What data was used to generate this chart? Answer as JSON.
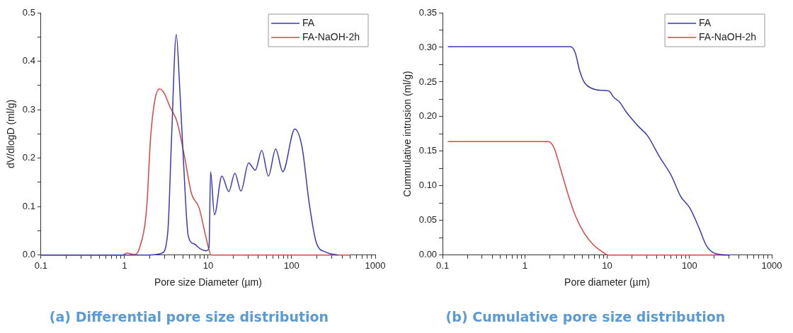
{
  "chart_data": [
    {
      "type": "line",
      "title": "(a) Differential pore size distribution",
      "xlabel": "Pore size Diameter (µm)",
      "ylabel": "dV/dlogD (ml/g)",
      "log": "x",
      "xlim": [
        0.1,
        1000
      ],
      "ylim": [
        0,
        0.5
      ],
      "xticks": [
        0.1,
        {
          "value": 0.2,
          "label": null
        },
        {
          "value": 0.3,
          "label": null
        },
        {
          "value": 0.4,
          "label": null
        },
        {
          "value": 0.5,
          "label": null
        },
        {
          "value": 0.6,
          "label": null
        },
        {
          "value": 0.7,
          "label": null
        },
        {
          "value": 0.8,
          "label": null
        },
        {
          "value": 0.9,
          "label": null
        },
        1,
        {
          "value": 2,
          "label": null
        },
        {
          "value": 3,
          "label": null
        },
        {
          "value": 4,
          "label": null
        },
        {
          "value": 5,
          "label": null
        },
        {
          "value": 6,
          "label": null
        },
        {
          "value": 7,
          "label": null
        },
        {
          "value": 8,
          "label": null
        },
        {
          "value": 9,
          "label": null
        },
        10,
        {
          "value": 20,
          "label": null
        },
        {
          "value": 30,
          "label": null
        },
        {
          "value": 40,
          "label": null
        },
        {
          "value": 50,
          "label": null
        },
        {
          "value": 60,
          "label": null
        },
        {
          "value": 70,
          "label": null
        },
        {
          "value": 80,
          "label": null
        },
        {
          "value": 90,
          "label": null
        },
        100,
        {
          "value": 200,
          "label": null
        },
        {
          "value": 300,
          "label": null
        },
        {
          "value": 400,
          "label": null
        },
        {
          "value": 500,
          "label": null
        },
        {
          "value": 600,
          "label": null
        },
        {
          "value": 700,
          "label": null
        },
        {
          "value": 800,
          "label": null
        },
        {
          "value": 900,
          "label": null
        },
        1000
      ],
      "yticks": [
        {
          "value": 0,
          "label": "0.0"
        },
        {
          "value": 0.05,
          "label": null
        },
        {
          "value": 0.1,
          "label": "0.1"
        },
        {
          "value": 0.15,
          "label": null
        },
        {
          "value": 0.2,
          "label": "0.2"
        },
        {
          "value": 0.25,
          "label": null
        },
        {
          "value": 0.3,
          "label": "0.3"
        },
        {
          "value": 0.35,
          "label": null
        },
        {
          "value": 0.4,
          "label": "0.4"
        },
        {
          "value": 0.45,
          "label": null
        },
        {
          "value": 0.5,
          "label": "0.5"
        }
      ],
      "grid": false,
      "legend": "top right",
      "marker": "none",
      "line_style": "solid",
      "series": [
        {
          "name": "FA",
          "color": "#3a3ab4",
          "x": [
            0.1,
            1.95,
            2.8,
            3.3,
            3.65,
            4.16,
            4.59,
            5.07,
            5.78,
            6.82,
            8.04,
            9.48,
            10.26,
            10.7,
            11.9,
            14.6,
            17.7,
            20.9,
            24.7,
            30.5,
            36.7,
            43.8,
            52.7,
            64.3,
            78.3,
            109,
            133,
            162,
            197,
            257,
            357
          ],
          "values": [
            0,
            0,
            0.004,
            0.05,
            0.24,
            0.455,
            0.34,
            0.194,
            0.04,
            0.023,
            0.013,
            0.009,
            0.016,
            0.172,
            0.083,
            0.163,
            0.131,
            0.169,
            0.132,
            0.19,
            0.175,
            0.216,
            0.163,
            0.219,
            0.172,
            0.26,
            0.223,
            0.107,
            0.026,
            0.006,
            0
          ]
        },
        {
          "name": "FA-NaOH-2h",
          "color": "#d94545",
          "x": [
            0.1,
            0.94,
            1.08,
            1.3,
            1.52,
            1.84,
            2.05,
            2.33,
            2.64,
            2.98,
            3.51,
            4.23,
            5.21,
            6.32,
            7.78,
            9.48,
            10.9,
            500
          ],
          "values": [
            0,
            0,
            0.004,
            0.001,
            0.016,
            0.098,
            0.242,
            0.324,
            0.343,
            0.334,
            0.305,
            0.276,
            0.204,
            0.127,
            0.098,
            0.035,
            0,
            0
          ]
        }
      ]
    },
    {
      "type": "line",
      "title": "(b) Cumulative pore size distribution",
      "xlabel": "Pore diameter (µm)",
      "ylabel": "Cummulative intrusion (ml/g)",
      "log": "x",
      "xlim": [
        0.1,
        1000
      ],
      "ylim": [
        0,
        0.35
      ],
      "xticks": [
        0.1,
        {
          "value": 0.2,
          "label": null
        },
        {
          "value": 0.3,
          "label": null
        },
        {
          "value": 0.4,
          "label": null
        },
        {
          "value": 0.5,
          "label": null
        },
        {
          "value": 0.6,
          "label": null
        },
        {
          "value": 0.7,
          "label": null
        },
        {
          "value": 0.8,
          "label": null
        },
        {
          "value": 0.9,
          "label": null
        },
        1,
        {
          "value": 2,
          "label": null
        },
        {
          "value": 3,
          "label": null
        },
        {
          "value": 4,
          "label": null
        },
        {
          "value": 5,
          "label": null
        },
        {
          "value": 6,
          "label": null
        },
        {
          "value": 7,
          "label": null
        },
        {
          "value": 8,
          "label": null
        },
        {
          "value": 9,
          "label": null
        },
        10,
        {
          "value": 20,
          "label": null
        },
        {
          "value": 30,
          "label": null
        },
        {
          "value": 40,
          "label": null
        },
        {
          "value": 50,
          "label": null
        },
        {
          "value": 60,
          "label": null
        },
        {
          "value": 70,
          "label": null
        },
        {
          "value": 80,
          "label": null
        },
        {
          "value": 90,
          "label": null
        },
        100,
        {
          "value": 200,
          "label": null
        },
        {
          "value": 300,
          "label": null
        },
        {
          "value": 400,
          "label": null
        },
        {
          "value": 500,
          "label": null
        },
        {
          "value": 600,
          "label": null
        },
        {
          "value": 700,
          "label": null
        },
        {
          "value": 800,
          "label": null
        },
        {
          "value": 900,
          "label": null
        },
        1000
      ],
      "yticks": [
        {
          "value": 0,
          "label": "0.00"
        },
        {
          "value": 0.025,
          "label": null
        },
        {
          "value": 0.05,
          "label": "0.05"
        },
        {
          "value": 0.075,
          "label": null
        },
        {
          "value": 0.1,
          "label": "0.10"
        },
        {
          "value": 0.125,
          "label": null
        },
        {
          "value": 0.15,
          "label": "0.15"
        },
        {
          "value": 0.175,
          "label": null
        },
        {
          "value": 0.2,
          "label": "0.20"
        },
        {
          "value": 0.225,
          "label": null
        },
        {
          "value": 0.25,
          "label": "0.25"
        },
        {
          "value": 0.275,
          "label": null
        },
        {
          "value": 0.3,
          "label": "0.30"
        },
        {
          "value": 0.325,
          "label": null
        },
        {
          "value": 0.35,
          "label": "0.35"
        }
      ],
      "grid": false,
      "legend": "top right",
      "marker": "none",
      "line_style": "solid",
      "series": [
        {
          "name": "FA",
          "color": "#3a3ab4",
          "x": [
            0.116,
            2.75,
            3.57,
            4.07,
            4.64,
            5.3,
            6.45,
            8.38,
            10.5,
            12,
            14.1,
            17.2,
            23.9,
            31.1,
            43.2,
            60,
            78,
            101,
            132,
            160,
            208,
            309
          ],
          "values": [
            0.301,
            0.301,
            0.301,
            0.293,
            0.266,
            0.249,
            0.241,
            0.238,
            0.237,
            0.228,
            0.221,
            0.206,
            0.186,
            0.172,
            0.142,
            0.115,
            0.085,
            0.068,
            0.038,
            0.014,
            0.002,
            0
          ]
        },
        {
          "name": "FA-NaOH-2h",
          "color": "#d94545",
          "x": [
            0.116,
            1.91,
            2.26,
            2.75,
            3.34,
            4.07,
            5.3,
            6.89,
            8.96,
            10.2,
            309
          ],
          "values": [
            0.164,
            0.164,
            0.155,
            0.122,
            0.088,
            0.058,
            0.031,
            0.014,
            0.004,
            0,
            0
          ]
        }
      ]
    }
  ]
}
